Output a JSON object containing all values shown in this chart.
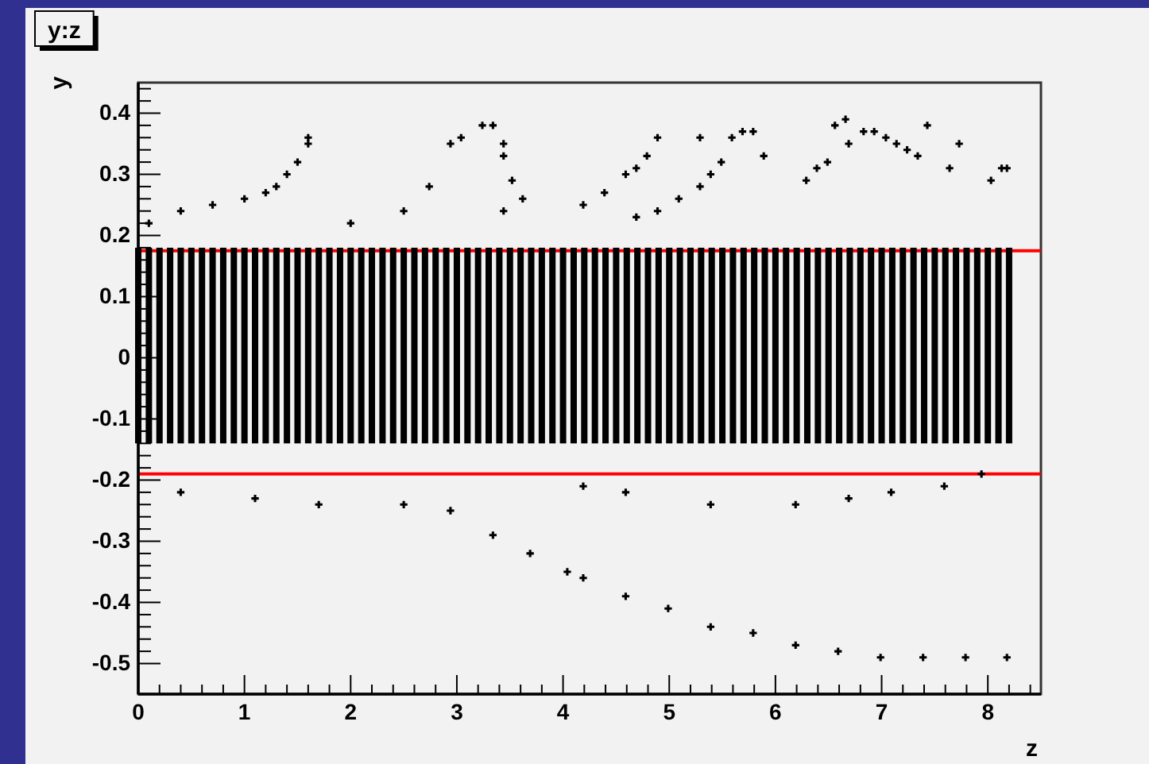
{
  "chart_data": {
    "type": "scatter",
    "title": "y:z",
    "xlabel": "z",
    "ylabel": "y",
    "xlim": [
      0,
      8.5
    ],
    "ylim": [
      -0.55,
      0.45
    ],
    "xticks": [
      0,
      {
        "value": 0.2,
        "label": null
      },
      {
        "value": 0.4,
        "label": null
      },
      {
        "value": 0.6,
        "label": null
      },
      {
        "value": 0.8,
        "label": null
      },
      1,
      {
        "value": 1.2,
        "label": null
      },
      {
        "value": 1.4,
        "label": null
      },
      {
        "value": 1.6,
        "label": null
      },
      {
        "value": 1.8,
        "label": null
      },
      2,
      {
        "value": 2.2,
        "label": null
      },
      {
        "value": 2.4,
        "label": null
      },
      {
        "value": 2.6,
        "label": null
      },
      {
        "value": 2.8,
        "label": null
      },
      3,
      {
        "value": 3.2,
        "label": null
      },
      {
        "value": 3.4,
        "label": null
      },
      {
        "value": 3.6,
        "label": null
      },
      {
        "value": 3.8,
        "label": null
      },
      4,
      {
        "value": 4.2,
        "label": null
      },
      {
        "value": 4.4,
        "label": null
      },
      {
        "value": 4.6,
        "label": null
      },
      {
        "value": 4.8,
        "label": null
      },
      5,
      {
        "value": 5.2,
        "label": null
      },
      {
        "value": 5.4,
        "label": null
      },
      {
        "value": 5.6,
        "label": null
      },
      {
        "value": 5.8,
        "label": null
      },
      6,
      {
        "value": 6.2,
        "label": null
      },
      {
        "value": 6.4,
        "label": null
      },
      {
        "value": 6.6,
        "label": null
      },
      {
        "value": 6.8,
        "label": null
      },
      7,
      {
        "value": 7.2,
        "label": null
      },
      {
        "value": 7.4,
        "label": null
      },
      {
        "value": 7.6,
        "label": null
      },
      {
        "value": 7.8,
        "label": null
      },
      8,
      {
        "value": 8.2,
        "label": null
      },
      {
        "value": 8.4,
        "label": null
      }
    ],
    "yticks": [
      -0.5,
      {
        "value": -0.48,
        "label": null
      },
      {
        "value": -0.46,
        "label": null
      },
      {
        "value": -0.44,
        "label": null
      },
      {
        "value": -0.42,
        "label": null
      },
      -0.4,
      {
        "value": -0.38,
        "label": null
      },
      {
        "value": -0.36,
        "label": null
      },
      {
        "value": -0.34,
        "label": null
      },
      {
        "value": -0.32,
        "label": null
      },
      -0.3,
      {
        "value": -0.28,
        "label": null
      },
      {
        "value": -0.26,
        "label": null
      },
      {
        "value": -0.24,
        "label": null
      },
      {
        "value": -0.22,
        "label": null
      },
      -0.2,
      {
        "value": -0.18,
        "label": null
      },
      {
        "value": -0.16,
        "label": null
      },
      {
        "value": -0.14,
        "label": null
      },
      {
        "value": -0.12,
        "label": null
      },
      -0.1,
      {
        "value": -0.08,
        "label": null
      },
      {
        "value": -0.06,
        "label": null
      },
      {
        "value": -0.04,
        "label": null
      },
      {
        "value": -0.02,
        "label": null
      },
      0,
      {
        "value": 0.02,
        "label": null
      },
      {
        "value": 0.04,
        "label": null
      },
      {
        "value": 0.06,
        "label": null
      },
      {
        "value": 0.08,
        "label": null
      },
      0.1,
      {
        "value": 0.12,
        "label": null
      },
      {
        "value": 0.14,
        "label": null
      },
      {
        "value": 0.16,
        "label": null
      },
      {
        "value": 0.18,
        "label": null
      },
      0.2,
      {
        "value": 0.22,
        "label": null
      },
      {
        "value": 0.24,
        "label": null
      },
      {
        "value": 0.26,
        "label": null
      },
      {
        "value": 0.28,
        "label": null
      },
      0.3,
      {
        "value": 0.32,
        "label": null
      },
      {
        "value": 0.34,
        "label": null
      },
      {
        "value": 0.36,
        "label": null
      },
      {
        "value": 0.38,
        "label": null
      },
      0.4,
      {
        "value": 0.42,
        "label": null
      },
      {
        "value": 0.44,
        "label": null
      }
    ],
    "grid": false,
    "marker": "cross",
    "series": [
      {
        "type": "bar",
        "color": "#000000",
        "x": [
          0,
          0.1,
          0.2,
          0.3,
          0.4,
          0.5,
          0.6,
          0.7,
          0.8,
          0.9,
          1,
          1.1,
          1.2,
          1.3,
          1.4,
          1.5,
          1.6,
          1.7,
          1.8,
          1.9,
          2,
          2.1,
          2.2,
          2.3,
          2.4,
          2.5,
          2.6,
          2.7,
          2.8,
          2.9,
          3,
          3.1,
          3.2,
          3.3,
          3.4,
          3.5,
          3.6,
          3.7,
          3.8,
          3.9,
          4,
          4.1,
          4.2,
          4.3,
          4.4,
          4.5,
          4.6,
          4.7,
          4.8,
          4.9,
          5,
          5.1,
          5.2,
          5.3,
          5.4,
          5.5,
          5.6,
          5.7,
          5.8,
          5.9,
          6,
          6.1,
          6.2,
          6.3,
          6.4,
          6.5,
          6.6,
          6.7,
          6.8,
          6.9,
          7,
          7.1,
          7.2,
          7.3,
          7.4,
          7.5,
          7.6,
          7.7,
          7.8,
          7.9,
          8,
          8.1,
          8.2
        ],
        "base": [
          -0.14,
          -0.14,
          -0.14,
          -0.14,
          -0.14,
          -0.14,
          -0.14,
          -0.14,
          -0.14,
          -0.14,
          -0.14,
          -0.14,
          -0.14,
          -0.14,
          -0.14,
          -0.14,
          -0.14,
          -0.14,
          -0.14,
          -0.14,
          -0.14,
          -0.14,
          -0.14,
          -0.14,
          -0.14,
          -0.14,
          -0.14,
          -0.14,
          -0.14,
          -0.14,
          -0.14,
          -0.14,
          -0.14,
          -0.14,
          -0.14,
          -0.14,
          -0.14,
          -0.14,
          -0.14,
          -0.14,
          -0.14,
          -0.14,
          -0.14,
          -0.14,
          -0.14,
          -0.14,
          -0.14,
          -0.14,
          -0.14,
          -0.14,
          -0.14,
          -0.14,
          -0.14,
          -0.14,
          -0.14,
          -0.14,
          -0.14,
          -0.14,
          -0.14,
          -0.14,
          -0.14,
          -0.14,
          -0.14,
          -0.14,
          -0.14,
          -0.14,
          -0.14,
          -0.14,
          -0.14,
          -0.14,
          -0.14,
          -0.14,
          -0.14,
          -0.14,
          -0.14,
          -0.14,
          -0.14,
          -0.14,
          -0.14,
          -0.14,
          -0.14,
          -0.14,
          -0.14
        ],
        "values": [
          0.32,
          0.32,
          0.32,
          0.32,
          0.32,
          0.32,
          0.32,
          0.32,
          0.32,
          0.32,
          0.32,
          0.32,
          0.32,
          0.32,
          0.32,
          0.32,
          0.32,
          0.32,
          0.32,
          0.32,
          0.32,
          0.32,
          0.32,
          0.32,
          0.32,
          0.32,
          0.32,
          0.32,
          0.32,
          0.32,
          0.32,
          0.32,
          0.32,
          0.32,
          0.32,
          0.32,
          0.32,
          0.32,
          0.32,
          0.32,
          0.32,
          0.32,
          0.32,
          0.32,
          0.32,
          0.32,
          0.32,
          0.32,
          0.32,
          0.32,
          0.32,
          0.32,
          0.32,
          0.32,
          0.32,
          0.32,
          0.32,
          0.32,
          0.32,
          0.32,
          0.32,
          0.32,
          0.32,
          0.32,
          0.32,
          0.32,
          0.32,
          0.32,
          0.32,
          0.32,
          0.32,
          0.32,
          0.32,
          0.32,
          0.32,
          0.32,
          0.32,
          0.32,
          0.32,
          0.32,
          0.32,
          0.32,
          0.32
        ]
      },
      {
        "color": "#000000",
        "x": [
          0.1,
          0.4,
          0.7,
          1.0,
          1.2,
          1.3,
          1.4,
          1.5,
          1.6,
          1.6,
          2.0,
          2.5,
          2.74,
          2.94,
          3.04,
          3.24,
          3.34,
          3.44,
          3.44,
          3.52,
          3.62,
          3.44,
          4.19,
          4.39,
          4.59,
          4.69,
          4.79,
          4.89,
          5.29,
          5.59,
          5.69,
          5.79,
          5.89,
          4.69,
          4.89,
          5.09,
          5.29,
          5.39,
          5.49,
          6.29,
          6.39,
          6.49,
          6.56,
          6.66,
          6.69,
          6.83,
          6.93,
          7.04,
          7.14,
          7.24,
          7.34,
          7.43,
          7.64,
          7.73,
          8.03,
          8.13,
          8.18
        ],
        "values": [
          0.22,
          0.24,
          0.25,
          0.26,
          0.27,
          0.28,
          0.3,
          0.32,
          0.35,
          0.36,
          0.22,
          0.24,
          0.28,
          0.35,
          0.36,
          0.38,
          0.38,
          0.35,
          0.33,
          0.29,
          0.26,
          0.24,
          0.25,
          0.27,
          0.3,
          0.31,
          0.33,
          0.36,
          0.36,
          0.36,
          0.37,
          0.37,
          0.33,
          0.23,
          0.24,
          0.26,
          0.28,
          0.3,
          0.32,
          0.29,
          0.31,
          0.32,
          0.38,
          0.39,
          0.35,
          0.37,
          0.37,
          0.36,
          0.35,
          0.34,
          0.33,
          0.38,
          0.31,
          0.35,
          0.29,
          0.31,
          0.31
        ]
      },
      {
        "color": "#000000",
        "x": [
          0.4,
          1.1,
          1.7,
          2.5,
          2.94,
          3.34,
          3.69,
          4.04,
          4.19,
          4.59,
          4.99,
          5.39,
          5.79,
          6.19,
          6.59,
          6.99,
          7.39,
          7.79,
          8.18,
          4.19,
          4.59,
          5.39,
          6.19,
          6.69,
          7.09,
          7.59,
          7.94
        ],
        "values": [
          -0.22,
          -0.23,
          -0.24,
          -0.24,
          -0.25,
          -0.29,
          -0.32,
          -0.35,
          -0.36,
          -0.39,
          -0.41,
          -0.44,
          -0.45,
          -0.47,
          -0.48,
          -0.49,
          -0.49,
          -0.49,
          -0.49,
          -0.21,
          -0.22,
          -0.24,
          -0.24,
          -0.23,
          -0.22,
          -0.21,
          -0.19
        ]
      }
    ],
    "ref_lines": [
      {
        "axis": "y",
        "value": 0.175,
        "color": "#ff0000"
      },
      {
        "axis": "y",
        "value": -0.19,
        "color": "#ff0000"
      }
    ]
  }
}
